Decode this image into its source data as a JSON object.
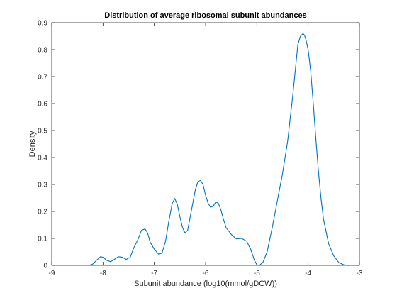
{
  "chart_data": {
    "type": "line",
    "title": "Distribution of average ribosomal subunit abundances",
    "xlabel": "Subunit abundance (log10(mmol/gDCW))",
    "ylabel": "Density",
    "xlim": [
      -9,
      -3
    ],
    "ylim": [
      0,
      0.9
    ],
    "xticks": [
      -9,
      -8,
      -7,
      -6,
      -5,
      -4,
      -3
    ],
    "xtick_labels": [
      "-9",
      "-8",
      "-7",
      "-6",
      "-5",
      "-4",
      "-3"
    ],
    "yticks": [
      0,
      0.1,
      0.2,
      0.3,
      0.4,
      0.5,
      0.6,
      0.7,
      0.8,
      0.9
    ],
    "ytick_labels": [
      "0",
      "0.1",
      "0.2",
      "0.3",
      "0.4",
      "0.5",
      "0.6",
      "0.7",
      "0.8",
      "0.9"
    ],
    "grid": false,
    "colors": {
      "line": "#0072BD",
      "axes": "#262626"
    },
    "series": [
      {
        "x": [
          -8.27,
          -8.2,
          -8.12,
          -8.05,
          -8.0,
          -7.92,
          -7.85,
          -7.78,
          -7.7,
          -7.62,
          -7.55,
          -7.47,
          -7.4,
          -7.32,
          -7.25,
          -7.18,
          -7.13,
          -7.08,
          -7.0,
          -6.92,
          -6.85,
          -6.78,
          -6.72,
          -6.65,
          -6.6,
          -6.55,
          -6.5,
          -6.45,
          -6.4,
          -6.35,
          -6.3,
          -6.25,
          -6.2,
          -6.15,
          -6.1,
          -6.05,
          -6.0,
          -5.95,
          -5.9,
          -5.85,
          -5.8,
          -5.75,
          -5.7,
          -5.65,
          -5.6,
          -5.5,
          -5.4,
          -5.3,
          -5.2,
          -5.12,
          -5.05,
          -5.0,
          -4.95,
          -4.88,
          -4.8,
          -4.7,
          -4.6,
          -4.5,
          -4.4,
          -4.3,
          -4.2,
          -4.15,
          -4.1,
          -4.07,
          -4.04,
          -4.0,
          -3.95,
          -3.9,
          -3.85,
          -3.8,
          -3.75,
          -3.7,
          -3.6,
          -3.5,
          -3.4,
          -3.3,
          -3.2
        ],
        "y": [
          0.0,
          0.005,
          0.02,
          0.032,
          0.03,
          0.018,
          0.014,
          0.022,
          0.032,
          0.03,
          0.022,
          0.03,
          0.065,
          0.095,
          0.13,
          0.135,
          0.12,
          0.085,
          0.06,
          0.042,
          0.045,
          0.09,
          0.16,
          0.23,
          0.248,
          0.225,
          0.18,
          0.14,
          0.12,
          0.13,
          0.18,
          0.23,
          0.28,
          0.31,
          0.315,
          0.3,
          0.26,
          0.23,
          0.215,
          0.22,
          0.235,
          0.23,
          0.205,
          0.17,
          0.14,
          0.115,
          0.098,
          0.1,
          0.09,
          0.06,
          0.02,
          0.002,
          0.0,
          0.012,
          0.05,
          0.14,
          0.24,
          0.34,
          0.46,
          0.63,
          0.82,
          0.85,
          0.86,
          0.853,
          0.835,
          0.8,
          0.72,
          0.6,
          0.47,
          0.35,
          0.25,
          0.17,
          0.08,
          0.035,
          0.01,
          0.002,
          0.0
        ]
      }
    ]
  }
}
